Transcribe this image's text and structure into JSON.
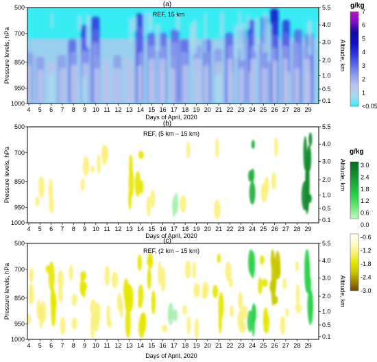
{
  "chart_data": [
    {
      "type": "heatmap",
      "panel_label": "(a)",
      "title": "REF, 15 km",
      "xlabel": "Days of April, 2020",
      "ylabel": "Pressure levels, hPa",
      "y2label": "Altitude, km",
      "x_ticks": [
        "4",
        "5",
        "6",
        "7",
        "8",
        "9",
        "10",
        "11",
        "12",
        "13",
        "14",
        "15",
        "16",
        "17",
        "18",
        "19",
        "20",
        "21",
        "22",
        "23",
        "24",
        "25",
        "26",
        "27",
        "28",
        "29"
      ],
      "y_ticks": [
        "500",
        "700",
        "850",
        "950",
        "1000"
      ],
      "y2_ticks": [
        "5.5",
        "4.0",
        "3.0",
        "2.0",
        "1.0",
        "0.5",
        "0.1"
      ],
      "colorbar_unit": "g/kg",
      "colorbar_labels": [
        "7",
        "6",
        "5",
        "4",
        "3",
        "2",
        "1",
        "<0.05"
      ],
      "colorbar_colors": [
        "#38ecf4",
        "#a6dcf0",
        "#b8c4ec",
        "#8c9cec",
        "#5a66e6",
        "#2e36dc",
        "#1210c8",
        "#0c0aa0",
        "#7a10c6",
        "#c010c8"
      ],
      "series": [
        {
          "name": "",
          "x": [
            4,
            5,
            6,
            7,
            8,
            9,
            10,
            11,
            12,
            13,
            14,
            15,
            16,
            17,
            18,
            19,
            20,
            21,
            22,
            23,
            24,
            25,
            26,
            27,
            28,
            29
          ],
          "values": [
            2.8,
            2.5,
            2.2,
            2.6,
            3.6,
            4.5,
            5.0,
            2.4,
            2.6,
            2.4,
            5.2,
            4.0,
            4.0,
            4.2,
            3.6,
            3.2,
            3.6,
            3.0,
            4.0,
            4.2,
            4.8,
            5.0,
            5.5,
            4.8,
            4.2,
            4.0
          ]
        }
      ]
    },
    {
      "type": "heatmap",
      "panel_label": "(b)",
      "title": "REF, (5 km – 15 km)",
      "xlabel": "Days of April, 2020",
      "ylabel": "Pressure levels, hPa",
      "y2label": "Altitude, km",
      "x_ticks": [
        "4",
        "5",
        "6",
        "7",
        "8",
        "9",
        "10",
        "11",
        "12",
        "13",
        "14",
        "15",
        "16",
        "17",
        "18",
        "19",
        "20",
        "21",
        "22",
        "23",
        "24",
        "25",
        "26",
        "27",
        "28",
        "29"
      ],
      "y_ticks": [
        "500",
        "700",
        "850",
        "950",
        "1000"
      ],
      "y2_ticks": [
        "5.5",
        "4.0",
        "3.0",
        "2.0",
        "1.0",
        "0.5",
        "0.1"
      ],
      "colorbar_unit": "g/kg",
      "colorbar_labels": [
        "3.0",
        "2.4",
        "1.8",
        "1.2",
        "0.6",
        "0.0",
        "-0.6",
        "-1.2",
        "-1.8",
        "-2.4",
        "-3.0"
      ],
      "colorbar_colors": [
        "#0b6a20",
        "#138a2e",
        "#1cad3c",
        "#2dd14e",
        "#6ee87c",
        "#c4f6c8",
        "#ffffff",
        "#fefcc8",
        "#faf07a",
        "#e6e600",
        "#c8c800",
        "#a08a00",
        "#6e4410"
      ],
      "series": [
        {
          "name": "",
          "x": [
            4,
            5,
            6,
            7,
            8,
            9,
            10,
            11,
            12,
            13,
            14,
            15,
            16,
            17,
            18,
            19,
            20,
            21,
            22,
            23,
            24,
            25,
            26,
            27,
            28,
            29
          ],
          "values": [
            0.0,
            -0.3,
            -0.4,
            0.0,
            0.0,
            -0.2,
            -0.2,
            -0.2,
            0.0,
            -0.6,
            -0.8,
            -0.3,
            0.0,
            0.3,
            -0.2,
            0.0,
            0.0,
            -0.2,
            0.0,
            0.0,
            1.2,
            -0.3,
            -0.3,
            0.0,
            0.0,
            2.2
          ]
        }
      ]
    },
    {
      "type": "heatmap",
      "panel_label": "(c)",
      "title": "REF, (2 km – 15 km)",
      "xlabel": "Days of April, 2020",
      "ylabel": "Pressure levels, hPa",
      "y2label": "Altitude, km",
      "x_ticks": [
        "4",
        "5",
        "6",
        "7",
        "8",
        "9",
        "10",
        "11",
        "12",
        "13",
        "14",
        "15",
        "16",
        "17",
        "18",
        "19",
        "20",
        "21",
        "22",
        "23",
        "24",
        "25",
        "26",
        "27",
        "28",
        "29"
      ],
      "y_ticks": [
        "500",
        "700",
        "850",
        "950",
        "1000"
      ],
      "y2_ticks": [
        "5.5",
        "4.0",
        "3.0",
        "2.0",
        "1.0",
        "0.5",
        "0.1"
      ],
      "series": [
        {
          "name": "",
          "x": [
            4,
            5,
            6,
            7,
            8,
            9,
            10,
            11,
            12,
            13,
            14,
            15,
            16,
            17,
            18,
            19,
            20,
            21,
            22,
            23,
            24,
            25,
            26,
            27,
            28,
            29
          ],
          "values": [
            -0.3,
            -0.4,
            -0.8,
            -0.4,
            -0.3,
            -0.8,
            -0.5,
            -0.4,
            -0.3,
            -0.8,
            -1.0,
            -0.6,
            -0.4,
            0.4,
            -0.4,
            -0.3,
            -0.3,
            -0.6,
            -0.4,
            -0.5,
            0.8,
            -0.8,
            -1.2,
            -0.4,
            -0.3,
            1.0
          ]
        }
      ]
    }
  ]
}
